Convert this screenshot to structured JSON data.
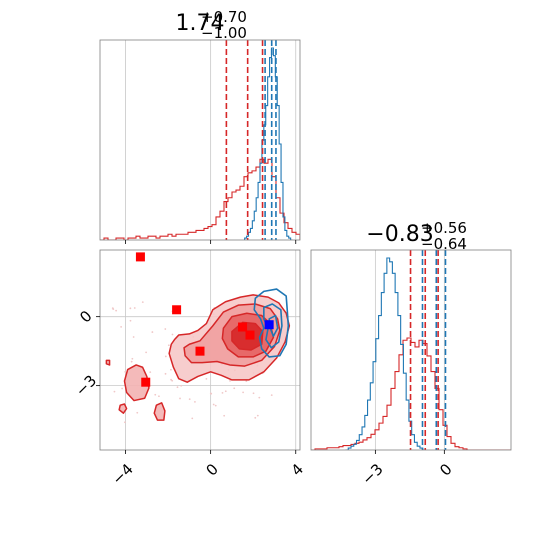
{
  "colors": {
    "red": "#d62728",
    "blue": "#1f77b4",
    "red_marker": "#ff0000",
    "blue_marker": "#0000ff"
  },
  "chart_data": {
    "type": "corner",
    "parameters": [
      {
        "title_value": "1.74",
        "title_plus": "+0.70",
        "title_minus": "−1.00",
        "range": [
          -5.2,
          4.2
        ],
        "ticks": [
          -4,
          0,
          4
        ],
        "tick_labels": [
          "−4",
          "0",
          "4"
        ],
        "hist_red": {
          "bin_start": -5.2,
          "bin_width": 0.188,
          "counts": [
            0,
            1,
            0,
            0,
            1,
            1,
            0,
            1,
            1,
            2,
            1,
            1,
            2,
            2,
            1,
            2,
            2,
            3,
            2,
            3,
            3,
            3,
            4,
            4,
            5,
            5,
            6,
            7,
            8,
            12,
            15,
            20,
            22,
            25,
            26,
            28,
            33,
            35,
            36,
            38,
            42,
            40,
            42,
            33,
            22,
            14,
            9,
            6,
            4,
            3
          ]
        },
        "hist_blue": {
          "bin_start": 1.6,
          "bin_width": 0.09,
          "counts": [
            1,
            2,
            4,
            6,
            10,
            15,
            22,
            30,
            40,
            52,
            60,
            70,
            85,
            95,
            100,
            96,
            85,
            70,
            50,
            30,
            12,
            5,
            2,
            1,
            0
          ]
        },
        "quantiles_red": [
          0.74,
          1.74,
          2.44
        ],
        "quantiles_blue": [
          2.56,
          2.87,
          3.07
        ]
      },
      {
        "title_value": "−0.83",
        "title_plus": "+0.56",
        "title_minus": "−0.64",
        "range": [
          -5.8,
          2.9
        ],
        "ticks": [
          -3,
          0
        ],
        "tick_labels": [
          "−3",
          "0"
        ],
        "hist_red": {
          "bin_start": -5.8,
          "bin_width": 0.174,
          "counts": [
            0,
            1,
            1,
            1,
            2,
            2,
            2,
            3,
            4,
            4,
            5,
            6,
            7,
            9,
            11,
            14,
            18,
            24,
            30,
            40,
            55,
            70,
            85,
            98,
            100,
            96,
            92,
            98,
            95,
            84,
            70,
            55,
            36,
            22,
            12,
            6,
            3,
            2,
            1,
            0,
            0,
            0,
            0,
            0,
            0,
            0,
            0,
            0,
            0,
            0
          ]
        },
        "hist_blue": {
          "bin_start": -4.3,
          "bin_width": 0.12,
          "counts": [
            0,
            1,
            2,
            3,
            5,
            8,
            12,
            18,
            26,
            35,
            46,
            58,
            70,
            82,
            92,
            100,
            98,
            92,
            82,
            70,
            55,
            40,
            26,
            15,
            8,
            4,
            2,
            1,
            0
          ]
        },
        "quantiles_red": [
          -1.47,
          -0.83,
          -0.27
        ],
        "quantiles_blue": [
          -0.95,
          -0.35,
          0.05
        ]
      }
    ],
    "red_contours": [
      [
        [
          -1.7,
          -1.0
        ],
        [
          -1.5,
          -0.8
        ],
        [
          -1.0,
          -0.75
        ],
        [
          -0.6,
          -0.6
        ],
        [
          -0.2,
          -0.3
        ],
        [
          0.1,
          0.3
        ],
        [
          0.7,
          0.65
        ],
        [
          1.4,
          0.85
        ],
        [
          2.0,
          0.95
        ],
        [
          2.7,
          0.85
        ],
        [
          3.2,
          0.6
        ],
        [
          3.55,
          0.15
        ],
        [
          3.7,
          -0.4
        ],
        [
          3.5,
          -1.1
        ],
        [
          3.1,
          -1.8
        ],
        [
          2.5,
          -2.4
        ],
        [
          1.8,
          -2.75
        ],
        [
          1.0,
          -2.75
        ],
        [
          0.5,
          -2.55
        ],
        [
          0.0,
          -2.4
        ],
        [
          -0.6,
          -2.6
        ],
        [
          -1.1,
          -2.85
        ],
        [
          -1.5,
          -2.7
        ],
        [
          -1.75,
          -2.2
        ],
        [
          -1.95,
          -1.6
        ],
        [
          -1.85,
          -1.2
        ]
      ],
      [
        [
          -1.0,
          -1.2
        ],
        [
          -0.5,
          -1.05
        ],
        [
          0.1,
          -0.4
        ],
        [
          0.6,
          0.2
        ],
        [
          1.3,
          0.5
        ],
        [
          2.1,
          0.55
        ],
        [
          2.8,
          0.35
        ],
        [
          3.15,
          -0.1
        ],
        [
          3.25,
          -0.6
        ],
        [
          3.0,
          -1.3
        ],
        [
          2.4,
          -1.9
        ],
        [
          1.6,
          -2.15
        ],
        [
          0.9,
          -2.1
        ],
        [
          0.3,
          -1.95
        ],
        [
          -0.4,
          -2.0
        ],
        [
          -0.9,
          -2.0
        ],
        [
          -1.2,
          -1.7
        ],
        [
          -1.25,
          -1.35
        ]
      ],
      [
        [
          0.6,
          -0.5
        ],
        [
          1.0,
          0.0
        ],
        [
          1.7,
          0.15
        ],
        [
          2.4,
          0.05
        ],
        [
          2.8,
          -0.3
        ],
        [
          2.95,
          -0.9
        ],
        [
          2.6,
          -1.5
        ],
        [
          2.0,
          -1.75
        ],
        [
          1.3,
          -1.75
        ],
        [
          0.8,
          -1.4
        ],
        [
          0.55,
          -0.95
        ]
      ],
      [
        [
          1.0,
          -0.65
        ],
        [
          1.5,
          -0.25
        ],
        [
          2.1,
          -0.3
        ],
        [
          2.45,
          -0.65
        ],
        [
          2.4,
          -1.2
        ],
        [
          1.9,
          -1.45
        ],
        [
          1.35,
          -1.4
        ],
        [
          1.0,
          -1.05
        ]
      ],
      [
        [
          -3.9,
          -2.3
        ],
        [
          -3.5,
          -2.1
        ],
        [
          -3.2,
          -2.2
        ],
        [
          -3.0,
          -2.6
        ],
        [
          -2.9,
          -3.1
        ],
        [
          -3.1,
          -3.55
        ],
        [
          -3.6,
          -3.65
        ],
        [
          -3.95,
          -3.3
        ],
        [
          -4.05,
          -2.8
        ]
      ],
      [
        [
          -2.55,
          -3.85
        ],
        [
          -2.3,
          -3.75
        ],
        [
          -2.15,
          -4.1
        ],
        [
          -2.2,
          -4.5
        ],
        [
          -2.5,
          -4.5
        ],
        [
          -2.65,
          -4.2
        ]
      ],
      [
        [
          -4.25,
          -3.85
        ],
        [
          -4.05,
          -3.8
        ],
        [
          -3.95,
          -4.0
        ],
        [
          -4.1,
          -4.2
        ],
        [
          -4.3,
          -4.05
        ]
      ],
      [
        [
          -4.9,
          -1.9
        ],
        [
          -4.75,
          -1.9
        ],
        [
          -4.75,
          -2.1
        ],
        [
          -4.9,
          -2.05
        ]
      ]
    ],
    "blue_contours": [
      [
        [
          2.1,
          0.8
        ],
        [
          2.5,
          1.1
        ],
        [
          3.1,
          1.2
        ],
        [
          3.55,
          0.9
        ],
        [
          3.6,
          0.3
        ],
        [
          3.65,
          -0.4
        ],
        [
          3.55,
          -1.2
        ],
        [
          3.25,
          -1.7
        ],
        [
          2.75,
          -1.75
        ],
        [
          2.4,
          -1.4
        ],
        [
          2.3,
          -0.9
        ],
        [
          2.5,
          -0.5
        ],
        [
          2.35,
          -0.1
        ],
        [
          2.05,
          0.3
        ]
      ],
      [
        [
          2.5,
          0.4
        ],
        [
          2.9,
          0.55
        ],
        [
          3.3,
          0.3
        ],
        [
          3.35,
          -0.4
        ],
        [
          3.2,
          -1.1
        ],
        [
          2.85,
          -1.35
        ],
        [
          2.6,
          -1.0
        ],
        [
          2.7,
          -0.5
        ],
        [
          2.5,
          -0.1
        ]
      ],
      [
        [
          2.75,
          -0.1
        ],
        [
          3.05,
          0.05
        ],
        [
          3.15,
          -0.5
        ],
        [
          2.95,
          -0.85
        ],
        [
          2.8,
          -0.5
        ]
      ]
    ],
    "red_markers": [
      [
        -3.3,
        2.6
      ],
      [
        -1.6,
        0.3
      ],
      [
        -0.5,
        -1.5
      ],
      [
        1.5,
        -0.45
      ],
      [
        1.85,
        -0.8
      ],
      [
        -3.05,
        -2.85
      ]
    ],
    "blue_marker": [
      2.75,
      -0.35
    ]
  }
}
